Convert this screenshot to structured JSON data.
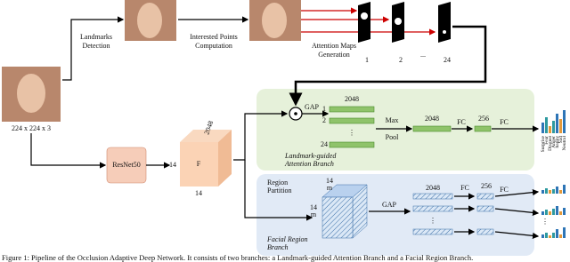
{
  "input": {
    "size": "224 x 224 x 3"
  },
  "top": {
    "landmarks": [
      "Landmarks",
      "Detection"
    ],
    "points": [
      "Interested Points",
      "Computation"
    ],
    "attention": [
      "Attention Maps",
      "Generation"
    ],
    "map_labels": [
      "1",
      "2",
      "...",
      "24"
    ]
  },
  "backbone": {
    "name": "ResNet50",
    "feature": "F",
    "depth": "2048",
    "height": "14",
    "width": "14"
  },
  "attention_branch": {
    "name": [
      "Landmark-guided",
      "Attention Branch"
    ],
    "gap": "GAP",
    "dim": "2048",
    "rows": [
      "1",
      "2",
      "⋮",
      "24"
    ],
    "pool": [
      "Max",
      "Pool"
    ],
    "dim2": "2048",
    "fc1": "FC",
    "dim3": "256",
    "fc2": "FC"
  },
  "emotions": [
    "Surprise",
    "Fear",
    "Disgust",
    "Anger",
    "happy",
    "Sad",
    "Neutral"
  ],
  "region_branch": {
    "name": [
      "Facial Region",
      "Branch"
    ],
    "partition": [
      "Region",
      "Partition"
    ],
    "size": "14",
    "m": "m",
    "gap": "GAP",
    "dim": "2048",
    "fc1": "FC",
    "dim2": "256",
    "fc2": "FC",
    "dots": "⋮"
  },
  "caption": "Figure 1: Pipeline of the Occlusion Adaptive Deep Network. It consists of two branches: a Landmark-guided Attention Branch and a Facial Region Branch."
}
